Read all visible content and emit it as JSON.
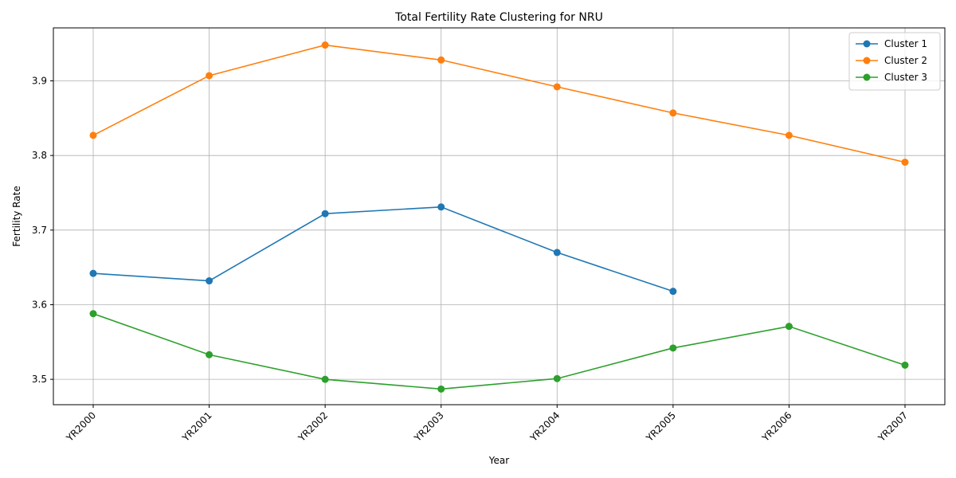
{
  "chart_data": {
    "type": "line",
    "title": "Total Fertility Rate Clustering for NRU",
    "xlabel": "Year",
    "ylabel": "Fertility Rate",
    "categories": [
      "YR2000",
      "YR2001",
      "YR2002",
      "YR2003",
      "YR2004",
      "YR2005",
      "YR2006",
      "YR2007"
    ],
    "yticks": [
      "3.5",
      "3.6",
      "3.7",
      "3.8",
      "3.9"
    ],
    "ylim": [
      3.466,
      3.971
    ],
    "grid": true,
    "legend_position": "top-right",
    "series": [
      {
        "name": "Cluster 1",
        "color": "#1f77b4",
        "values": [
          3.642,
          3.632,
          3.722,
          3.731,
          3.67,
          3.618,
          null,
          null
        ]
      },
      {
        "name": "Cluster 2",
        "color": "#ff7f0e",
        "values": [
          3.827,
          3.907,
          3.948,
          3.928,
          3.892,
          3.857,
          3.827,
          3.791
        ]
      },
      {
        "name": "Cluster 3",
        "color": "#2ca02c",
        "values": [
          3.588,
          3.533,
          3.5,
          3.487,
          3.501,
          3.542,
          3.571,
          3.519
        ]
      }
    ]
  }
}
